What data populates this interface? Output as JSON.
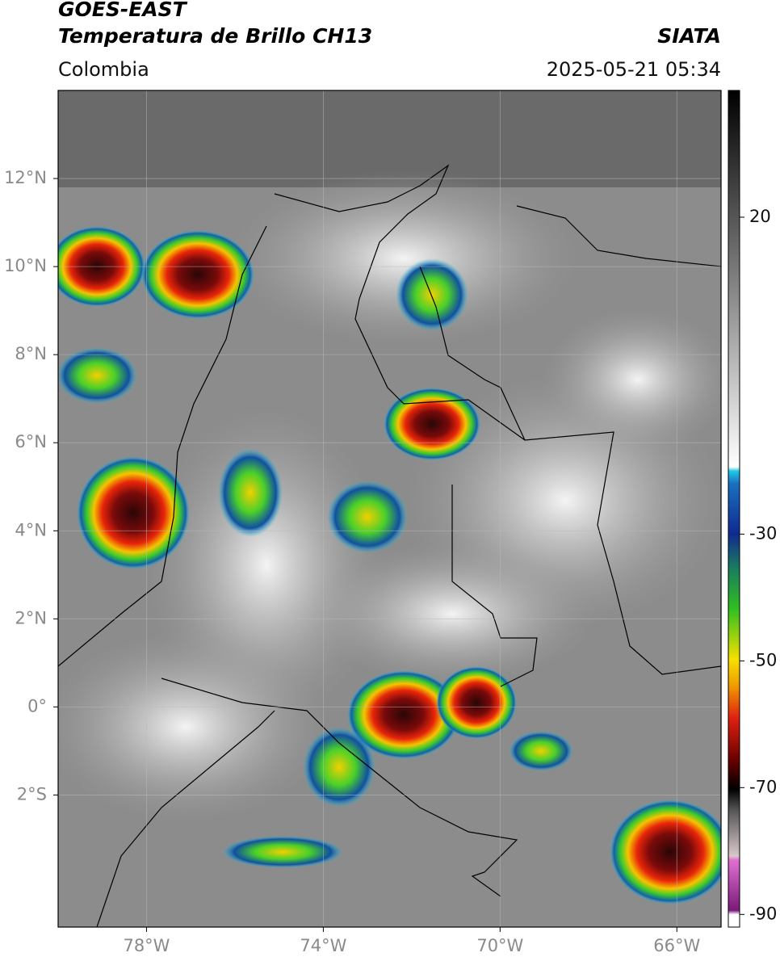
{
  "header": {
    "title": "GOES-EAST",
    "subtitle": "Temperatura de Brillo CH13",
    "region": "Colombia",
    "source": "SIATA",
    "timestamp": "2025-05-21 05:34"
  },
  "map": {
    "xlim": [
      -80,
      -65
    ],
    "ylim": [
      -5,
      14
    ],
    "xticks": [
      {
        "value": -78,
        "label": "78°W"
      },
      {
        "value": -74,
        "label": "74°W"
      },
      {
        "value": -70,
        "label": "70°W"
      },
      {
        "value": -66,
        "label": "66°W"
      }
    ],
    "yticks": [
      {
        "value": 12,
        "label": "12°N"
      },
      {
        "value": 10,
        "label": "10°N"
      },
      {
        "value": 8,
        "label": "8°N"
      },
      {
        "value": 6,
        "label": "6°N"
      },
      {
        "value": 4,
        "label": "4°N"
      },
      {
        "value": 2,
        "label": "2°N"
      },
      {
        "value": 0,
        "label": "0°"
      },
      {
        "value": -2,
        "label": "2°S"
      }
    ],
    "grid": true
  },
  "colorbar": {
    "lim": [
      -92,
      40
    ],
    "ticks": [
      20,
      -30,
      -50,
      -70,
      -90
    ]
  }
}
